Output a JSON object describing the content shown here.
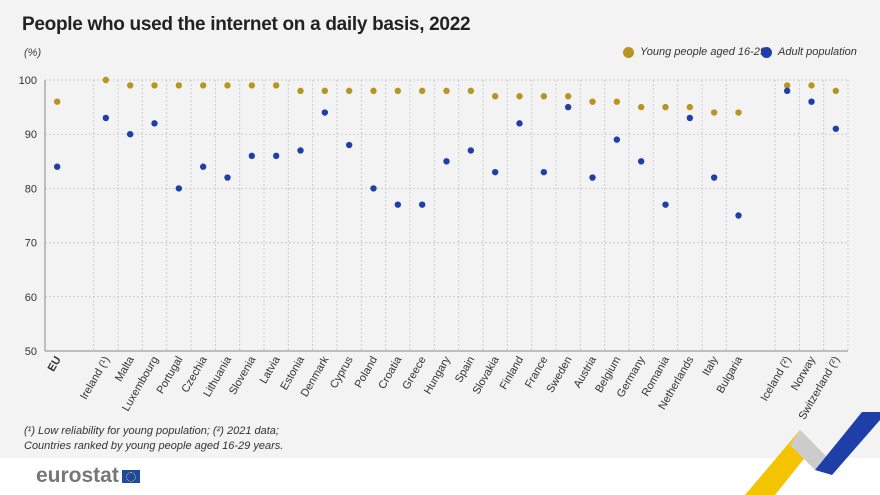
{
  "chart_data": {
    "type": "scatter",
    "title": "People who used the internet on a daily basis, 2022",
    "ylabel": "(%)",
    "ylim": [
      50,
      100
    ],
    "yticks": [
      50,
      60,
      70,
      80,
      90,
      100
    ],
    "grid": true,
    "legend_placement": "top-right",
    "categories": [
      "EU",
      "Ireland (¹)",
      "Malta",
      "Luxembourg",
      "Portugal",
      "Czechia",
      "Lithuania",
      "Slovenia",
      "Latvia",
      "Estonia",
      "Denmark",
      "Cyprus",
      "Poland",
      "Croatia",
      "Greece",
      "Hungary",
      "Spain",
      "Slovakia",
      "Finland",
      "France",
      "Sweden",
      "Austria",
      "Belgium",
      "Germany",
      "Romania",
      "Netherlands",
      "Italy",
      "Bulgaria",
      "Iceland (²)",
      "Norway",
      "Switzerland (²)"
    ],
    "series": [
      {
        "name": "Young people aged 16-29",
        "color": "#b8951f",
        "values": [
          96,
          100,
          99,
          99,
          99,
          99,
          99,
          99,
          99,
          98,
          98,
          98,
          98,
          98,
          98,
          98,
          98,
          97,
          97,
          97,
          97,
          96,
          96,
          95,
          95,
          95,
          94,
          94,
          99,
          99,
          98
        ]
      },
      {
        "name": "Adult population",
        "color": "#1f3fa8",
        "values": [
          84,
          93,
          90,
          92,
          80,
          84,
          82,
          86,
          86,
          87,
          94,
          88,
          80,
          77,
          77,
          85,
          87,
          83,
          92,
          83,
          95,
          82,
          89,
          85,
          77,
          93,
          82,
          75,
          98,
          96,
          91
        ]
      }
    ]
  },
  "footnotes": [
    "(¹) Low reliability for young population; (²) 2021 data;",
    "Countries ranked by young people aged 16-29 years."
  ],
  "logo_text": "eurostat"
}
